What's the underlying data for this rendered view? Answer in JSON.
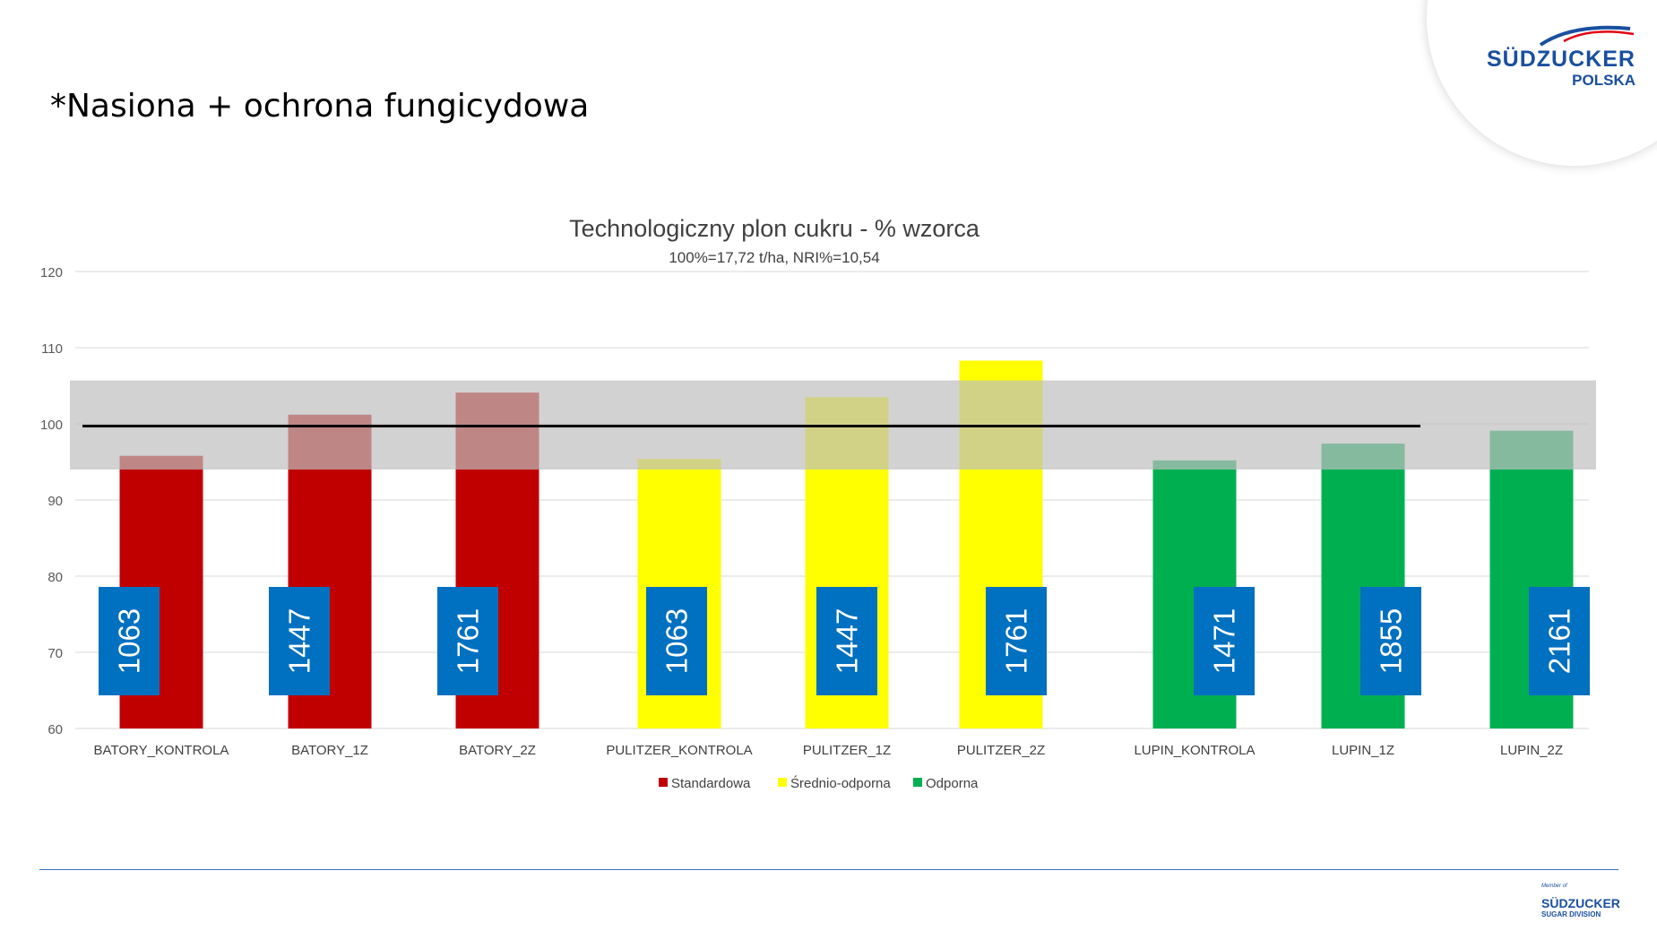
{
  "slide": {
    "title": "*Nasiona + ochrona fungicydowa"
  },
  "logo": {
    "word": "SÜDZUCKER",
    "sub": "POLSKA",
    "color": "#1a4fa0"
  },
  "footer_logo": {
    "member": "Member of",
    "word": "SÜDZUCKER",
    "division": "SUGAR DIVISION"
  },
  "chart_data": {
    "type": "bar",
    "title": "Technologiczny plon cukru - % wzorca",
    "subtitle": "100%=17,72 t/ha, NRI%=10,54",
    "categories": [
      "BATORY_KONTROLA",
      "BATORY_1Z",
      "BATORY_2Z",
      "PULITZER_KONTROLA",
      "PULITZER_1Z",
      "PULITZER_2Z",
      "LUPIN_KONTROLA",
      "LUPIN_1Z",
      "LUPIN_2Z"
    ],
    "values": [
      95.8,
      101.2,
      104.1,
      95.4,
      103.5,
      108.3,
      95.2,
      97.4,
      99.1
    ],
    "bar_labels": [
      "1063",
      "1447",
      "1761",
      "1063",
      "1447",
      "1761",
      "1471",
      "1855",
      "2161"
    ],
    "category_group": [
      0,
      0,
      0,
      1,
      1,
      1,
      2,
      2,
      2
    ],
    "series": [
      {
        "name": "Standardowa",
        "color": "#c00000"
      },
      {
        "name": "Średnio-odporna",
        "color": "#ffff00"
      },
      {
        "name": "Odporna",
        "color": "#00b050"
      }
    ],
    "reference_line": 99.7,
    "band": [
      94,
      105.7
    ],
    "band_color": "#bfbfbf",
    "label_box_color": "#0070c0",
    "ylim": [
      60,
      120
    ],
    "yticks": [
      "60",
      "70",
      "80",
      "90",
      "100",
      "110",
      "120"
    ],
    "grid": true,
    "legend_position": "bottom"
  }
}
